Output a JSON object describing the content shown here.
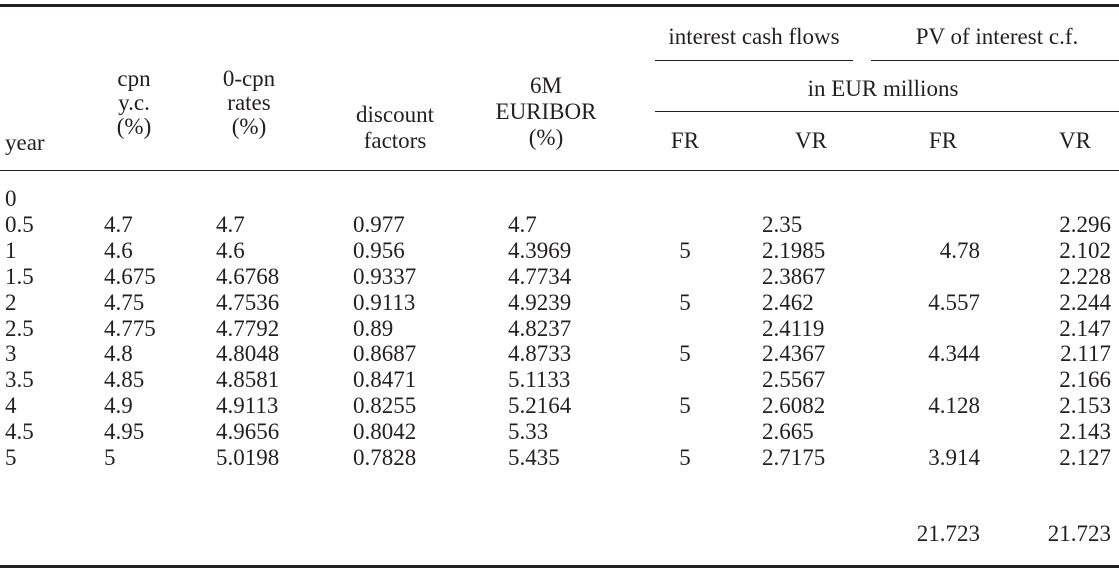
{
  "header": {
    "year": "year",
    "cpn_yc": [
      "cpn",
      "y.c.",
      "(%)"
    ],
    "zero_cpn": [
      "0-cpn",
      "rates",
      "(%)"
    ],
    "discount": [
      "discount",
      "factors"
    ],
    "euribor": [
      "6M",
      "EURIBOR",
      "(%)"
    ],
    "interest_cash_flows": "interest cash flows",
    "pv_interest": "PV of interest c.f.",
    "in_eur_millions": "in EUR millions",
    "fr": "FR",
    "vr": "VR"
  },
  "rows": [
    {
      "year": "0",
      "cpn": "",
      "zero": "",
      "df": "",
      "euribor": "",
      "cf_fr": "",
      "cf_vr": "",
      "pv_fr": "",
      "pv_vr": ""
    },
    {
      "year": "0.5",
      "cpn": "4.7",
      "zero": "4.7",
      "df": "0.977",
      "euribor": "4.7",
      "cf_fr": "",
      "cf_vr": "2.35",
      "pv_fr": "",
      "pv_vr": "2.296"
    },
    {
      "year": "1",
      "cpn": "4.6",
      "zero": "4.6",
      "df": "0.956",
      "euribor": "4.3969",
      "cf_fr": "5",
      "cf_vr": "2.1985",
      "pv_fr": "4.78",
      "pv_vr": "2.102"
    },
    {
      "year": "1.5",
      "cpn": "4.675",
      "zero": "4.6768",
      "df": "0.9337",
      "euribor": "4.7734",
      "cf_fr": "",
      "cf_vr": "2.3867",
      "pv_fr": "",
      "pv_vr": "2.228"
    },
    {
      "year": "2",
      "cpn": "4.75",
      "zero": "4.7536",
      "df": "0.9113",
      "euribor": "4.9239",
      "cf_fr": "5",
      "cf_vr": "2.462",
      "pv_fr": "4.557",
      "pv_vr": "2.244"
    },
    {
      "year": "2.5",
      "cpn": "4.775",
      "zero": "4.7792",
      "df": "0.89",
      "euribor": "4.8237",
      "cf_fr": "",
      "cf_vr": "2.4119",
      "pv_fr": "",
      "pv_vr": "2.147"
    },
    {
      "year": "3",
      "cpn": "4.8",
      "zero": "4.8048",
      "df": "0.8687",
      "euribor": "4.8733",
      "cf_fr": "5",
      "cf_vr": "2.4367",
      "pv_fr": "4.344",
      "pv_vr": "2.117"
    },
    {
      "year": "3.5",
      "cpn": "4.85",
      "zero": "4.8581",
      "df": "0.8471",
      "euribor": "5.1133",
      "cf_fr": "",
      "cf_vr": "2.5567",
      "pv_fr": "",
      "pv_vr": "2.166"
    },
    {
      "year": "4",
      "cpn": "4.9",
      "zero": "4.9113",
      "df": "0.8255",
      "euribor": "5.2164",
      "cf_fr": "5",
      "cf_vr": "2.6082",
      "pv_fr": "4.128",
      "pv_vr": "2.153"
    },
    {
      "year": "4.5",
      "cpn": "4.95",
      "zero": "4.9656",
      "df": "0.8042",
      "euribor": "5.33",
      "cf_fr": "",
      "cf_vr": "2.665",
      "pv_fr": "",
      "pv_vr": "2.143"
    },
    {
      "year": "5",
      "cpn": "5",
      "zero": "5.0198",
      "df": "0.7828",
      "euribor": "5.435",
      "cf_fr": "5",
      "cf_vr": "2.7175",
      "pv_fr": "3.914",
      "pv_vr": "2.127"
    }
  ],
  "totals": {
    "pv_fr": "21.723",
    "pv_vr": "21.723"
  }
}
